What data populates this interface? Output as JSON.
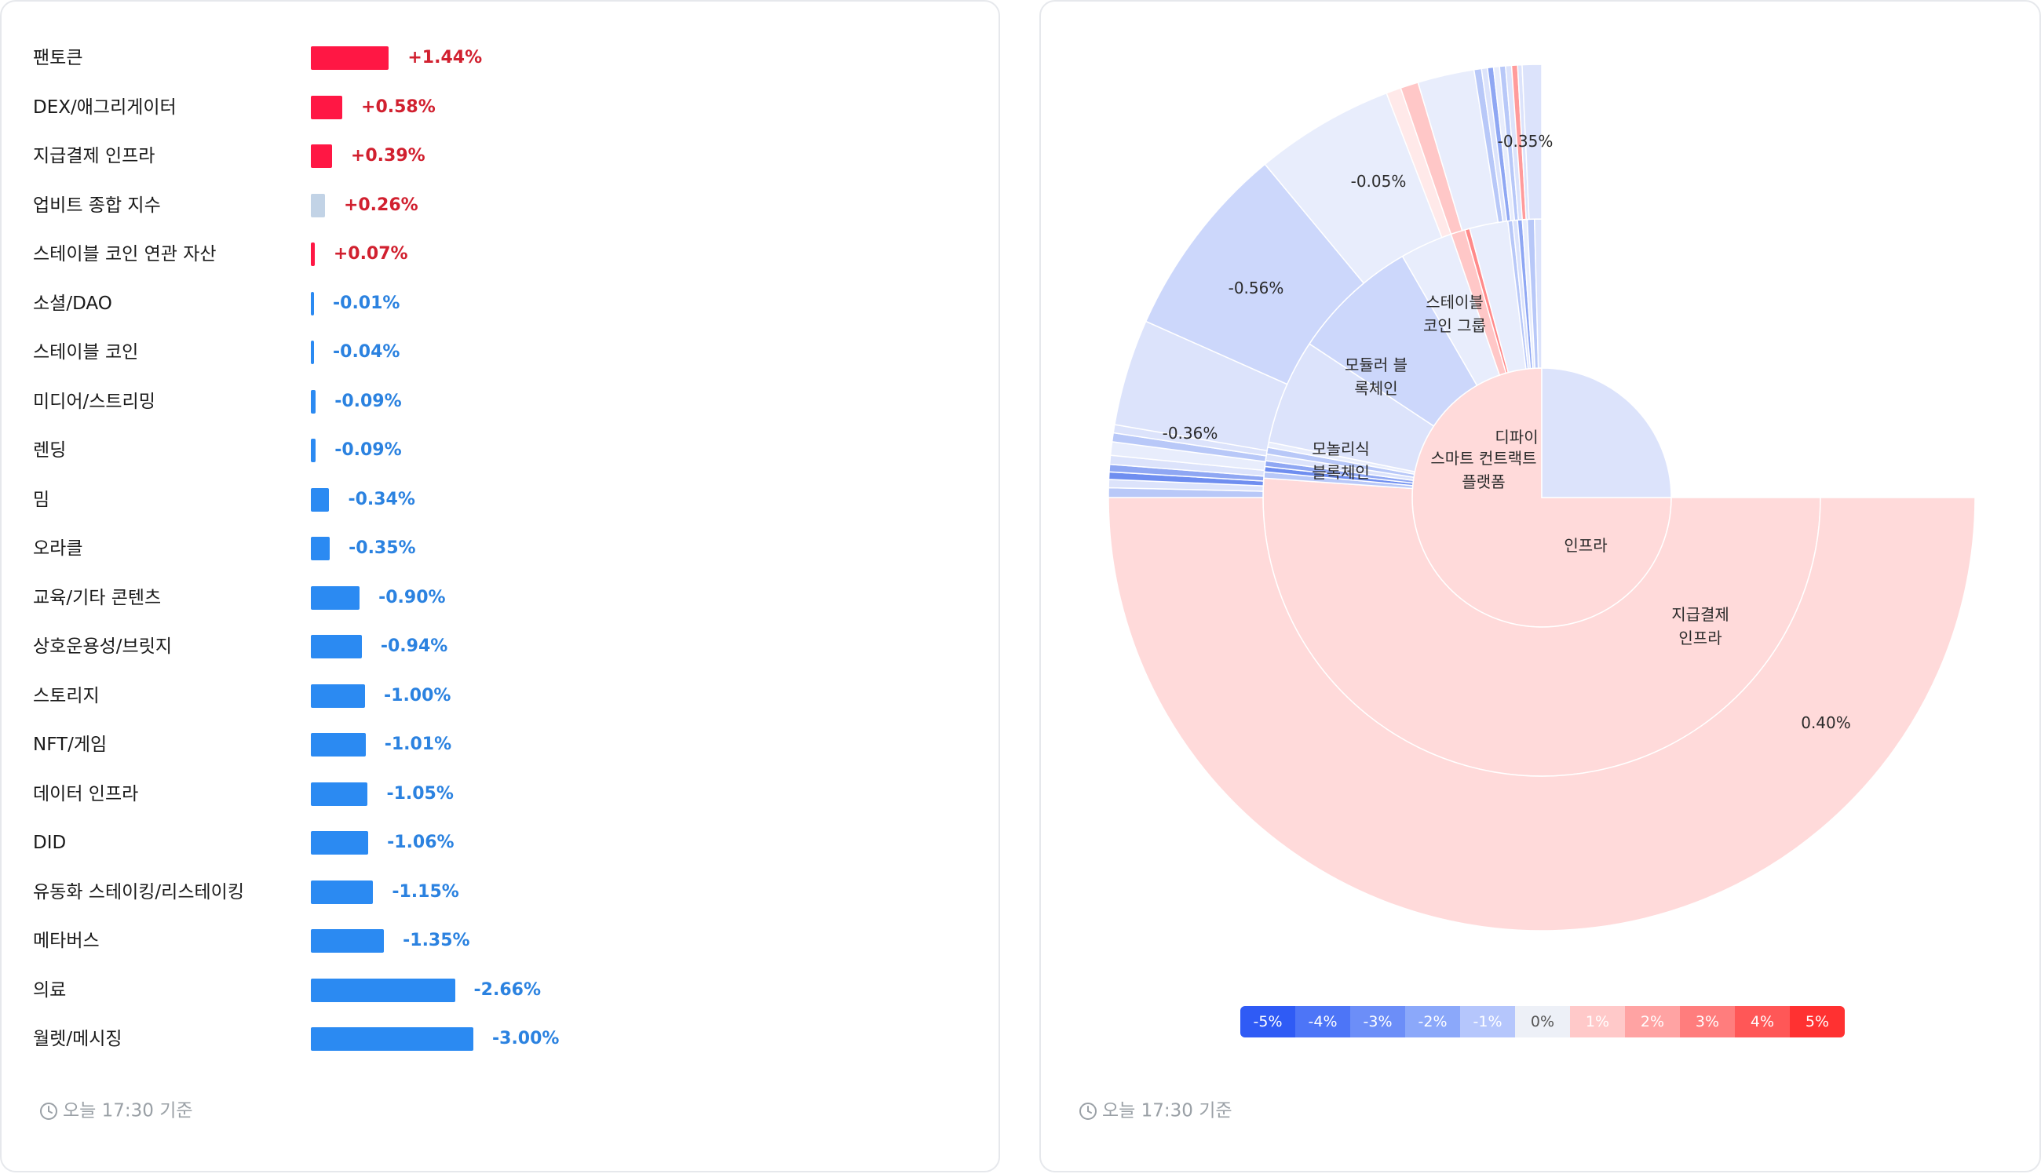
{
  "colors": {
    "positive": "#ff1744",
    "positive_text": "#d1202f",
    "negative": "#2b8af2",
    "negative_text": "#2b82e0",
    "neutral": "#c2d3e6"
  },
  "bar_list": {
    "items": [
      {
        "label": "팬토큰",
        "value": 1.44,
        "value_text": "+1.44%"
      },
      {
        "label": "DEX/애그리게이터",
        "value": 0.58,
        "value_text": "+0.58%"
      },
      {
        "label": "지급결제 인프라",
        "value": 0.39,
        "value_text": "+0.39%"
      },
      {
        "label": "업비트 종합 지수",
        "value": 0.26,
        "value_text": "+0.26%",
        "neutral": true
      },
      {
        "label": "스테이블 코인 연관 자산",
        "value": 0.07,
        "value_text": "+0.07%"
      },
      {
        "label": "소셜/DAO",
        "value": -0.01,
        "value_text": "-0.01%"
      },
      {
        "label": "스테이블 코인",
        "value": -0.04,
        "value_text": "-0.04%"
      },
      {
        "label": "미디어/스트리밍",
        "value": -0.09,
        "value_text": "-0.09%"
      },
      {
        "label": "렌딩",
        "value": -0.09,
        "value_text": "-0.09%"
      },
      {
        "label": "밈",
        "value": -0.34,
        "value_text": "-0.34%"
      },
      {
        "label": "오라클",
        "value": -0.35,
        "value_text": "-0.35%"
      },
      {
        "label": "교육/기타 콘텐츠",
        "value": -0.9,
        "value_text": "-0.90%"
      },
      {
        "label": "상호운용성/브릿지",
        "value": -0.94,
        "value_text": "-0.94%"
      },
      {
        "label": "스토리지",
        "value": -1.0,
        "value_text": "-1.00%"
      },
      {
        "label": "NFT/게임",
        "value": -1.01,
        "value_text": "-1.01%"
      },
      {
        "label": "데이터 인프라",
        "value": -1.05,
        "value_text": "-1.05%"
      },
      {
        "label": "DID",
        "value": -1.06,
        "value_text": "-1.06%"
      },
      {
        "label": "유동화 스테이킹/리스테이킹",
        "value": -1.15,
        "value_text": "-1.15%"
      },
      {
        "label": "메타버스",
        "value": -1.35,
        "value_text": "-1.35%"
      },
      {
        "label": "의료",
        "value": -2.66,
        "value_text": "-2.66%"
      },
      {
        "label": "월렛/메시징",
        "value": -3.0,
        "value_text": "-3.00%"
      }
    ]
  },
  "footer": {
    "left_text": "오늘 17:30 기준",
    "right_text": "오늘 17:30 기준"
  },
  "chart_data": {
    "type": "sunburst",
    "rings": {
      "inner": [
        {
          "name": "인프라",
          "angle_deg": [
            90,
            360
          ],
          "value_pct": null
        },
        {
          "name": "디파이",
          "angle_deg": [
            0,
            90
          ],
          "value_pct": null
        }
      ],
      "middle": [
        {
          "name": "지급결제 인프라",
          "angle_deg": [
            90,
            284
          ],
          "value_pct": 0.4
        },
        {
          "name": "모놀리식 블록체인",
          "angle_deg": [
            275,
            304
          ],
          "value_pct": -0.36
        },
        {
          "name": "모듈러 블록체인",
          "angle_deg": [
            304,
            330
          ],
          "value_pct": -0.56
        },
        {
          "name": "스테이블 코인 그룹",
          "angle_deg": [
            338,
            357
          ],
          "value_pct": -0.05
        },
        {
          "name": "스마트 컨트랙트 플랫폼",
          "angle_deg": [
            357,
            360
          ],
          "value_pct": -0.35
        }
      ]
    },
    "labels": [
      "인프라",
      "지급결제 인프라",
      "모놀리식 블록체인",
      "모듈러 블록체인",
      "스테이블 코인 그룹",
      "디파이",
      "스마트 컨트랙트 플랫폼"
    ],
    "value_labels": [
      "0.40%",
      "-0.36%",
      "-0.56%",
      "-0.05%",
      "-0.35%"
    ],
    "legend": {
      "labels": [
        "-5%",
        "-4%",
        "-3%",
        "-2%",
        "-1%",
        "0%",
        "1%",
        "2%",
        "3%",
        "4%",
        "5%"
      ],
      "colors": [
        "#2f5bf5",
        "#4d75f7",
        "#6c8ef8",
        "#8ba8fa",
        "#b5c6fc",
        "#edf0f7",
        "#ffc9c9",
        "#ffa3a3",
        "#ff7d7d",
        "#ff5757",
        "#ff3131"
      ],
      "text_colors": [
        "#ffffff",
        "#ffffff",
        "#ffffff",
        "#ffffff",
        "#ffffff",
        "#555555",
        "#ffffff",
        "#ffffff",
        "#ffffff",
        "#ffffff",
        "#ffffff"
      ]
    }
  }
}
